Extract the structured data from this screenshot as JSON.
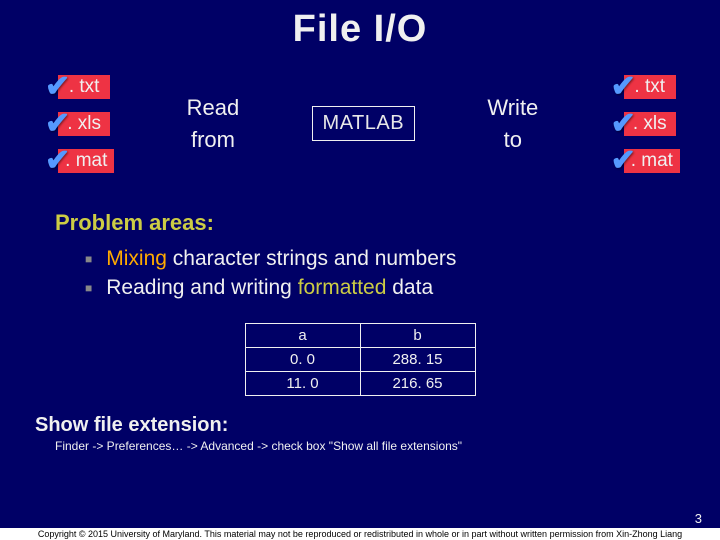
{
  "title": "File I/O",
  "left_files": [
    ". txt",
    ". xls",
    ". mat"
  ],
  "right_files": [
    ". txt",
    ". xls",
    ". mat"
  ],
  "read_label": "Read",
  "from_label": "from",
  "write_label": "Write",
  "to_label": "to",
  "matlab_label": "MATLAB",
  "problem_heading": "Problem areas:",
  "bullet1_pre": "Mixing",
  "bullet1_post": " character strings and numbers",
  "bullet2_pre": "Reading and writing ",
  "bullet2_hl": "formatted",
  "bullet2_post": " data",
  "table": {
    "headers": [
      "a",
      "b"
    ],
    "rows": [
      [
        "0. 0",
        "288. 15"
      ],
      [
        "11. 0",
        "216. 65"
      ]
    ]
  },
  "show_ext_heading": "Show file extension:",
  "finder_path": "Finder -> Preferences… -> Advanced  -> check box \"Show all file extensions\"",
  "slide_number": "3",
  "copyright": "Copyright © 2015 University of Maryland. This material may not be reproduced or redistributed in whole or in part without written permission from Xin-Zhong Liang"
}
